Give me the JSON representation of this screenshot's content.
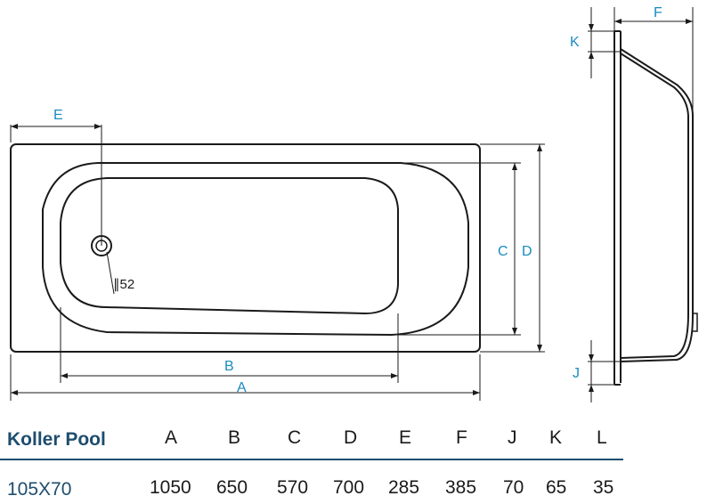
{
  "drawing": {
    "labels": {
      "A": "A",
      "B": "B",
      "C": "C",
      "D": "D",
      "E": "E",
      "F": "F",
      "J": "J",
      "K": "K",
      "drain": "∥52"
    },
    "colors": {
      "outline": "#1a1a1a",
      "dimension": "#1a8bc0",
      "brand": "#1e4d6e"
    }
  },
  "table": {
    "headers": [
      "Koller Pool",
      "A",
      "B",
      "C",
      "D",
      "E",
      "F",
      "J",
      "K",
      "L"
    ],
    "rows": [
      [
        "105X70",
        "1050",
        "650",
        "570",
        "700",
        "285",
        "385",
        "70",
        "65",
        "35"
      ]
    ]
  }
}
